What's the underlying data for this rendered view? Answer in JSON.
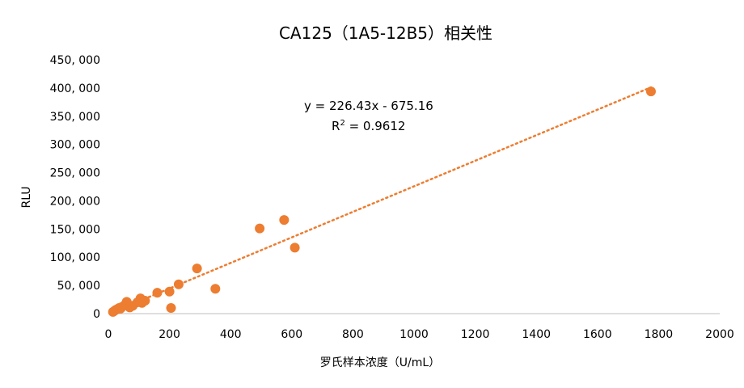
{
  "chart_data": {
    "type": "scatter",
    "title": "CA125（1A5-12B5）相关性",
    "xlabel": "罗氏样本浓度（U/mL）",
    "ylabel": "RLU",
    "xlim": [
      0,
      2000
    ],
    "ylim": [
      0,
      450000
    ],
    "x_ticks": [
      "0",
      "200",
      "400",
      "600",
      "800",
      "1000",
      "1200",
      "1400",
      "1600",
      "1800",
      "2000"
    ],
    "y_ticks": [
      "0",
      "50, 000",
      "100, 000",
      "150, 000",
      "200, 000",
      "250, 000",
      "300, 000",
      "350, 000",
      "400, 000",
      "450, 000"
    ],
    "grid": false,
    "marker_color": "#ED7D31",
    "series": [
      {
        "x": [
          15,
          20,
          25,
          30,
          35,
          40,
          45,
          55,
          60,
          70,
          80,
          95,
          105,
          110,
          120,
          160,
          200,
          205,
          230,
          290,
          350,
          495,
          575,
          610,
          1775
        ],
        "y": [
          3000,
          5000,
          7000,
          8000,
          10000,
          9000,
          12000,
          16000,
          21000,
          11000,
          14000,
          20000,
          27000,
          19000,
          23000,
          37000,
          39000,
          10000,
          52000,
          80000,
          44000,
          151000,
          166000,
          117000,
          394000
        ]
      }
    ],
    "trendline": {
      "type": "linear",
      "slope": 226.43,
      "intercept": -675.16,
      "equation": "y = 226.43x - 675.16",
      "r2_label": "R",
      "r2_sup": "2",
      "r2_value": " = 0.9612",
      "color": "#ED7D31",
      "style": "dotted"
    }
  }
}
